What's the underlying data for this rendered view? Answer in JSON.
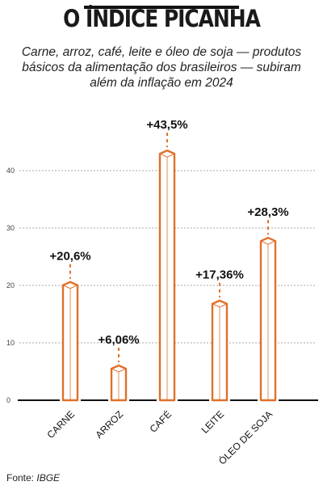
{
  "header": {
    "title": "O ÍNDICE PICANHA",
    "subtitle": "Carne, arroz, café, leite e óleo de soja — produtos básicos da alimentação dos brasileiros — subiram além da inflação em 2024"
  },
  "footer": {
    "source_label": "Fonte:",
    "source_value": "IBGE"
  },
  "colors": {
    "accent": "#e0702a",
    "grid": "#aaaaaa",
    "axis": "#111111"
  },
  "chart_data": {
    "type": "bar",
    "title": "O ÍNDICE PICANHA",
    "categories": [
      "CARNE",
      "ARROZ",
      "CAFÉ",
      "LEITE",
      "ÓLEO DE SOJA"
    ],
    "values": [
      20.6,
      6.06,
      43.5,
      17.36,
      28.3
    ],
    "data_labels": [
      "+20,6%",
      "+6,06%",
      "+43,5%",
      "+17,36%",
      "+28,3%"
    ],
    "yticks": [
      0,
      10,
      20,
      30,
      40
    ],
    "ylim": [
      0,
      45
    ],
    "grid": true,
    "xlabel": "",
    "ylabel": ""
  }
}
